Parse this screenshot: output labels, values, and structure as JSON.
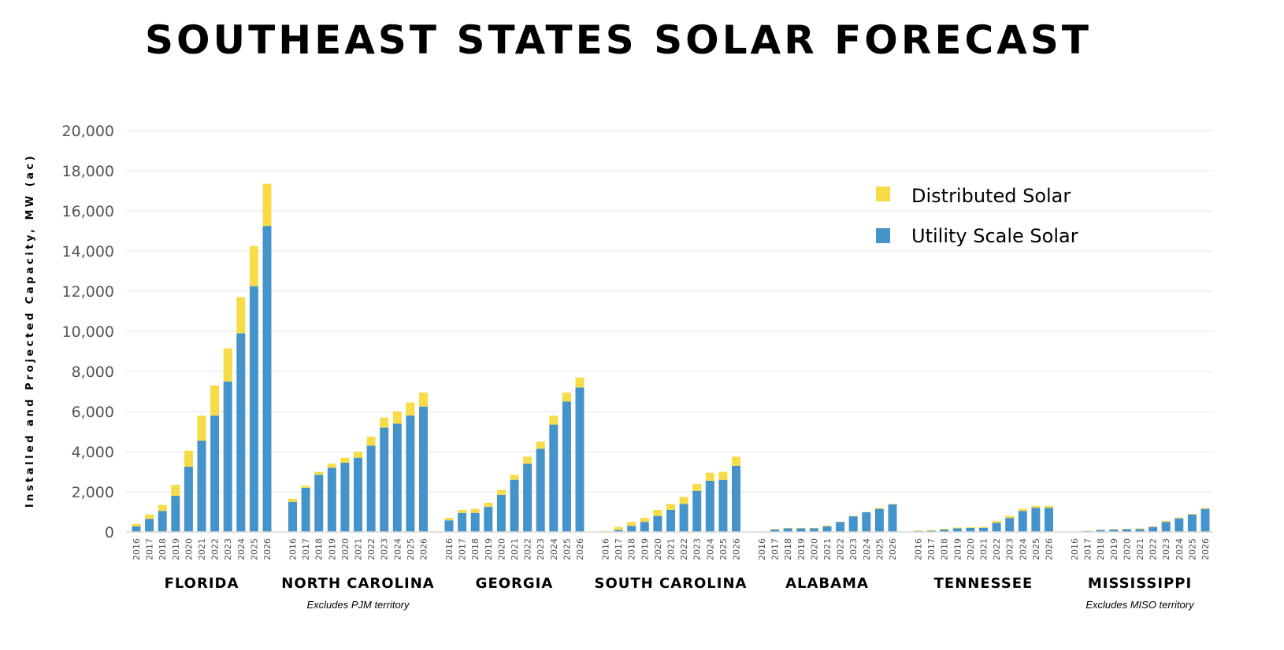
{
  "chart_data": {
    "type": "bar",
    "stacked": true,
    "title": "SOUTHEAST STATES SOLAR FORECAST",
    "ylabel": "Installed and Projected Capacity, MW (ac)",
    "xlabel": "",
    "ylim": [
      0,
      20000
    ],
    "yticks": [
      "0",
      "2,000",
      "4,000",
      "6,000",
      "8,000",
      "10,000",
      "12,000",
      "14,000",
      "16,000",
      "18,000",
      "20,000"
    ],
    "grid": true,
    "legend_position": "top-right",
    "years": [
      "2016",
      "2017",
      "2018",
      "2019",
      "2020",
      "2021",
      "2022",
      "2023",
      "2024",
      "2025",
      "2026"
    ],
    "series_names": [
      "Distributed Solar",
      "Utility Scale Solar"
    ],
    "colors": {
      "Distributed Solar": "#F7DC48",
      "Utility Scale Solar": "#4593CB"
    },
    "groups": [
      {
        "name": "FLORIDA",
        "note": "",
        "utility": [
          280,
          650,
          1050,
          1800,
          3250,
          4550,
          5800,
          7500,
          9900,
          12250,
          15250
        ],
        "distributed": [
          120,
          220,
          300,
          550,
          800,
          1250,
          1500,
          1650,
          1800,
          2000,
          2100
        ]
      },
      {
        "name": "NORTH CAROLINA",
        "note": "Excludes PJM territory",
        "utility": [
          1500,
          2200,
          2850,
          3200,
          3450,
          3700,
          4300,
          5200,
          5400,
          5800,
          6250
        ],
        "distributed": [
          150,
          100,
          150,
          200,
          250,
          300,
          450,
          500,
          600,
          650,
          700
        ]
      },
      {
        "name": "GEORGIA",
        "note": "",
        "utility": [
          580,
          950,
          950,
          1250,
          1850,
          2600,
          3400,
          4150,
          5350,
          6500,
          7200
        ],
        "distributed": [
          120,
          150,
          200,
          200,
          250,
          250,
          350,
          350,
          450,
          450,
          500
        ]
      },
      {
        "name": "SOUTH CAROLINA",
        "note": "",
        "utility": [
          20,
          100,
          300,
          500,
          800,
          1100,
          1400,
          2050,
          2550,
          2600,
          3300
        ],
        "distributed": [
          30,
          150,
          200,
          200,
          300,
          300,
          350,
          350,
          400,
          400,
          450
        ]
      },
      {
        "name": "ALABAMA",
        "note": "",
        "utility": [
          20,
          120,
          180,
          180,
          180,
          280,
          500,
          780,
          980,
          1150,
          1370
        ],
        "distributed": [
          10,
          30,
          20,
          20,
          20,
          40,
          20,
          20,
          20,
          50,
          30
        ]
      },
      {
        "name": "TENNESSEE",
        "note": "",
        "utility": [
          40,
          60,
          120,
          180,
          200,
          200,
          450,
          700,
          1050,
          1200,
          1200
        ],
        "distributed": [
          40,
          40,
          40,
          40,
          40,
          50,
          100,
          100,
          100,
          100,
          100
        ]
      },
      {
        "name": "MISSISSIPPI",
        "note": "Excludes MISO territory",
        "utility": [
          5,
          40,
          100,
          120,
          140,
          150,
          250,
          500,
          680,
          870,
          1150
        ],
        "distributed": [
          5,
          20,
          20,
          20,
          20,
          30,
          30,
          50,
          40,
          30,
          50
        ]
      }
    ]
  }
}
